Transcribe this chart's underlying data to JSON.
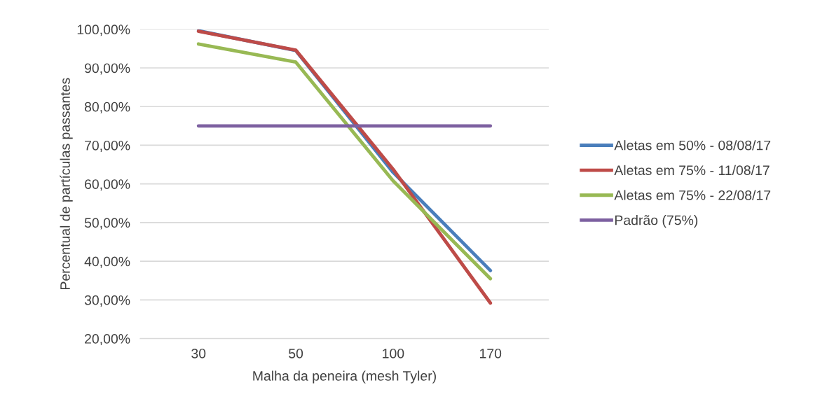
{
  "chart_data": {
    "type": "line",
    "xlabel": "Malha da peneira (mesh Tyler)",
    "ylabel": "Percentual de partículas passantes",
    "categories": [
      "30",
      "50",
      "100",
      "170"
    ],
    "series": [
      {
        "name": "Aletas em 50% - 08/08/17",
        "color": "#4a7ebb",
        "values": [
          99.6,
          94.5,
          63.0,
          37.6
        ]
      },
      {
        "name": "Aletas em 75% - 11/08/17",
        "color": "#be4b48",
        "values": [
          99.5,
          94.6,
          63.8,
          29.2
        ]
      },
      {
        "name": "Aletas em 75% - 22/08/17",
        "color": "#98b954",
        "values": [
          96.2,
          91.5,
          60.8,
          35.5
        ]
      },
      {
        "name": "Padrão (75%)",
        "color": "#7d60a0",
        "values": [
          75,
          75,
          75,
          75
        ]
      }
    ],
    "ylim": [
      20,
      100
    ],
    "yticks": [
      {
        "value": 20,
        "label": "20,00%"
      },
      {
        "value": 30,
        "label": "30,00%"
      },
      {
        "value": 40,
        "label": "40,00%"
      },
      {
        "value": 50,
        "label": "50,00%"
      },
      {
        "value": 60,
        "label": "60,00%"
      },
      {
        "value": 70,
        "label": "70,00%"
      },
      {
        "value": 80,
        "label": "80,00%"
      },
      {
        "value": 90,
        "label": "90,00%"
      },
      {
        "value": 100,
        "label": "100,00%"
      }
    ],
    "grid": "y",
    "legend": "right",
    "marker": "none",
    "line_style": "solid"
  }
}
